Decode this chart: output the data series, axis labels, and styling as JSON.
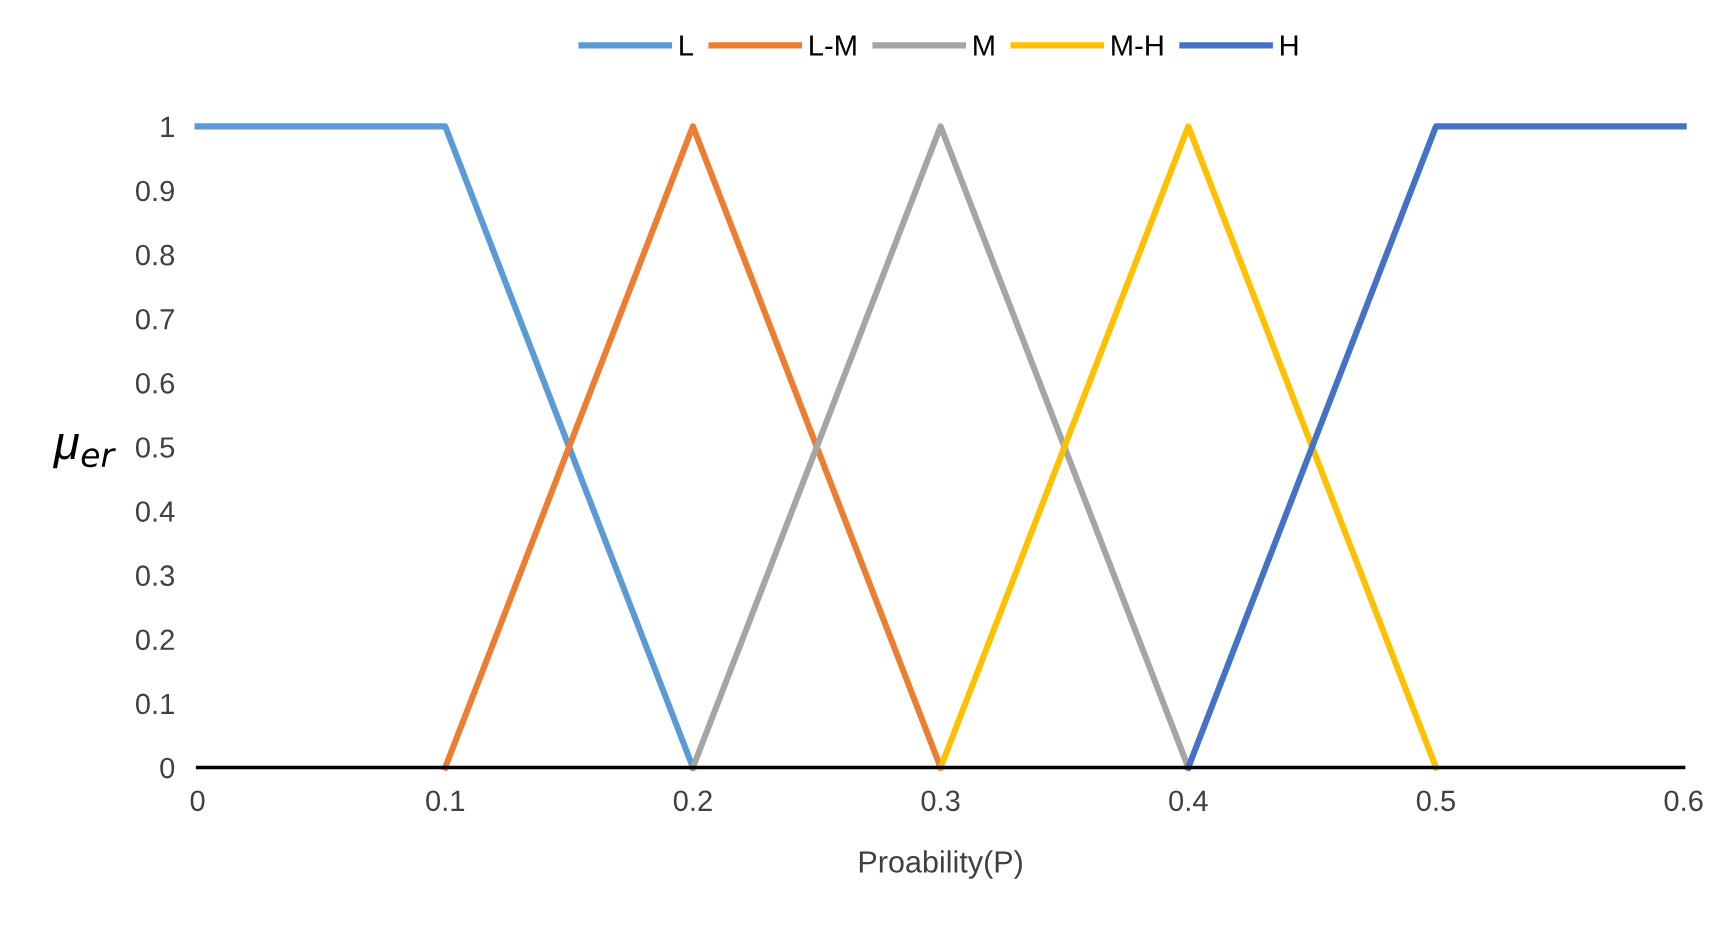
{
  "chart_data": {
    "type": "line",
    "xlabel": "Proability(P)",
    "ylabel": "μ$_{er}$",
    "legend": "top",
    "grid": false,
    "marker": "none",
    "line_style": "solid",
    "xlim": [
      0,
      0.6
    ],
    "xticks": [
      0,
      0.1,
      0.2,
      0.3,
      0.4,
      0.5,
      0.6
    ],
    "ylim": [
      0,
      1
    ],
    "yticks": [
      0,
      0.1,
      0.2,
      0.3,
      0.4,
      0.5,
      0.6,
      0.7,
      0.8,
      0.9,
      1
    ],
    "series": [
      {
        "name": "L",
        "color": "#5b9bd5",
        "x": [
          0,
          0.1,
          0.2
        ],
        "values": [
          1,
          1,
          0
        ]
      },
      {
        "name": "L-M",
        "color": "#ed7d31",
        "x": [
          0.1,
          0.2,
          0.3
        ],
        "values": [
          0,
          1,
          0
        ]
      },
      {
        "name": "M",
        "color": "#a5a5a5",
        "x": [
          0.2,
          0.3,
          0.4
        ],
        "values": [
          0,
          1,
          0
        ]
      },
      {
        "name": "M-H",
        "color": "#ffc000",
        "x": [
          0.3,
          0.4,
          0.5
        ],
        "values": [
          0,
          1,
          0
        ]
      },
      {
        "name": "H",
        "color": "#4472c4",
        "x": [
          0.4,
          0.5,
          0.6
        ],
        "values": [
          0,
          1,
          1
        ]
      }
    ]
  }
}
